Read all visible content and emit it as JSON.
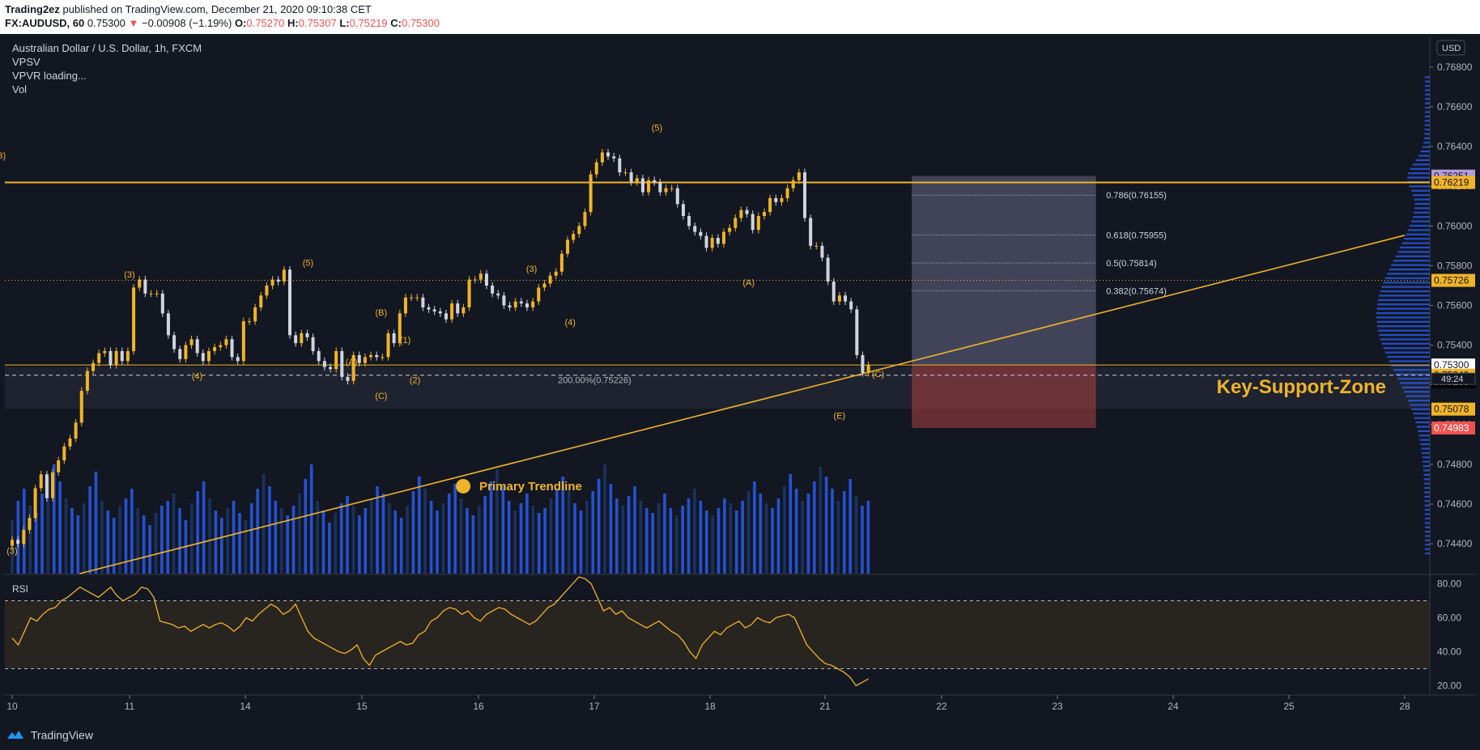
{
  "header": {
    "publisher": "Trading2ez",
    "published_text": "published on TradingView.com, December 21, 2020 09:10:38 CET",
    "symbol": "FX:AUDUSD, 60",
    "last": "0.75300",
    "arrow": "▼",
    "change": "−0.00908 (−1.19%)",
    "o_label": "O:",
    "o": "0.75270",
    "h_label": "H:",
    "h": "0.75307",
    "l_label": "L:",
    "l": "0.75219",
    "c_label": "C:",
    "c": "0.75300"
  },
  "legend": {
    "title": "Australian Dollar / U.S. Dollar, 1h, FXCM",
    "vpsv": "VPSV",
    "vpvr": "VPVR loading...",
    "vol": "Vol",
    "rsi": "RSI"
  },
  "currency": "USD",
  "colors": {
    "background": "#131722",
    "accent": "#f0b429",
    "up": "#f0b429",
    "down": "#d1d4dc",
    "volume": "#2962ff",
    "volume_dark": "#1e3a6e",
    "resistance": "#f0b429",
    "fib_zone": "#7a7d9c",
    "stop_zone": "#8b3a3a",
    "rsi_band": "#3a2f1f"
  },
  "annotations": {
    "key_support_zone": "Key-Support-Zone",
    "primary_trendline": "Primary Trendline",
    "fib_200": "200.00%(0.75226)",
    "fib_786": "0.786(0.76155)",
    "fib_618": "0.618(0.75955)",
    "fib_500": "0.5(0.75814)",
    "fib_382": "0.382(0.75674)",
    "countdown": "49:24"
  },
  "wave_labels": [
    {
      "text": "(3)",
      "date": "2020-12-11 00:00",
      "price": 0.7574
    },
    {
      "text": "(4)",
      "date": "2020-12-11 14:00",
      "price": 0.7523
    },
    {
      "text": "(5)",
      "date": "2020-12-14 13:00",
      "price": 0.758
    },
    {
      "text": "(A)",
      "date": "2020-12-14 22:00",
      "price": 0.753
    },
    {
      "text": "(B)",
      "date": "2020-12-15 04:00",
      "price": 0.7555
    },
    {
      "text": "(C)",
      "date": "2020-12-15 04:00",
      "price": 0.7513
    },
    {
      "text": "(1)",
      "date": "2020-12-15 09:00",
      "price": 0.7541
    },
    {
      "text": "(2)",
      "date": "2020-12-15 11:00",
      "price": 0.7521
    },
    {
      "text": "(3)",
      "date": "2020-12-16 11:00",
      "price": 0.7577
    },
    {
      "text": "(4)",
      "date": "2020-12-16 19:00",
      "price": 0.755
    },
    {
      "text": "(5)",
      "date": "2020-12-17 13:00",
      "price": 0.7648
    },
    {
      "text": "(A)",
      "date": "2020-12-18 08:00",
      "price": 0.757
    },
    {
      "text": "(B)",
      "date": "2020-12-20 21:00",
      "price": 0.7634
    },
    {
      "text": "(C)",
      "date": "2020-12-21 11:00",
      "price": 0.7524
    },
    {
      "text": "(E)",
      "date": "2020-12-21 03:00",
      "price": 0.7503
    },
    {
      "text": "(3)",
      "date": "2020-12-10 00:00",
      "price": 0.7435
    }
  ],
  "price_tags": [
    {
      "text": "0.76251",
      "bg": "#b39ddb",
      "fg": "#131722"
    },
    {
      "text": "0.76219",
      "bg": "#f0b429",
      "fg": "#131722"
    },
    {
      "text": "0.75726",
      "bg": "#f0b429",
      "fg": "#131722"
    },
    {
      "text": "0.75300",
      "bg": "#ffffff",
      "fg": "#131722"
    },
    {
      "text": "0.75289",
      "bg": "#000000",
      "fg": "#ffffff"
    },
    {
      "text": "0.75249",
      "bg": "#f0b429",
      "fg": "#131722"
    },
    {
      "text": "0.75078",
      "bg": "#f0b429",
      "fg": "#131722"
    },
    {
      "text": "0.74983",
      "bg": "#ef5350",
      "fg": "#ffffff"
    }
  ],
  "chart_data": [
    {
      "type": "candlestick",
      "title": "Australian Dollar / U.S. Dollar, 1h, FXCM",
      "x_ticks": [
        "10",
        "11",
        "14",
        "15",
        "16",
        "17",
        "18",
        "21",
        "22",
        "23",
        "24",
        "25",
        "28"
      ],
      "y_ticks": [
        "0.76800",
        "0.76600",
        "0.76400",
        "0.76200",
        "0.76000",
        "0.75800",
        "0.75600",
        "0.75400",
        "0.75200",
        "0.75000",
        "0.74800",
        "0.74600",
        "0.74400"
      ],
      "ylim": [
        0.7425,
        0.7695
      ],
      "resistance": 0.76219,
      "support_line": 0.75249,
      "key_support_zone": [
        0.7508,
        0.7529
      ],
      "dotted_level": 0.75726,
      "fib_levels": [
        {
          "label": "0.786",
          "price": 0.76155
        },
        {
          "label": "0.618",
          "price": 0.75955
        },
        {
          "label": "0.5",
          "price": 0.75814
        },
        {
          "label": "0.382",
          "price": 0.75674
        }
      ],
      "fib_box": [
        0.76251,
        0.753
      ],
      "stop_box": [
        0.753,
        0.74983
      ],
      "trendline": [
        {
          "date": "2020-12-10 14:00",
          "price": 0.7425
        },
        {
          "date": "2020-12-28 00:00",
          "price": 0.75953
        }
      ],
      "closes": [
        0.7442,
        0.744,
        0.7447,
        0.7453,
        0.7468,
        0.7475,
        0.7463,
        0.7476,
        0.7482,
        0.7489,
        0.7493,
        0.7501,
        0.7517,
        0.7527,
        0.7531,
        0.7536,
        0.7537,
        0.753,
        0.7537,
        0.7532,
        0.7537,
        0.7569,
        0.7573,
        0.7566,
        0.7566,
        0.7566,
        0.7556,
        0.7545,
        0.7538,
        0.7533,
        0.754,
        0.7543,
        0.7536,
        0.7532,
        0.7537,
        0.7539,
        0.754,
        0.7543,
        0.7534,
        0.7532,
        0.7552,
        0.7552,
        0.7559,
        0.7565,
        0.757,
        0.7573,
        0.7572,
        0.7578,
        0.7545,
        0.7541,
        0.7546,
        0.7544,
        0.7537,
        0.7532,
        0.7529,
        0.7528,
        0.7537,
        0.7524,
        0.7522,
        0.7535,
        0.7531,
        0.7534,
        0.7535,
        0.7534,
        0.7534,
        0.7546,
        0.7541,
        0.7556,
        0.7564,
        0.7564,
        0.7564,
        0.7559,
        0.7558,
        0.7557,
        0.7556,
        0.7553,
        0.7561,
        0.7556,
        0.7559,
        0.7573,
        0.7573,
        0.7576,
        0.757,
        0.7566,
        0.7565,
        0.756,
        0.7559,
        0.7562,
        0.7561,
        0.7559,
        0.7562,
        0.7569,
        0.7571,
        0.7575,
        0.7577,
        0.7586,
        0.7593,
        0.7596,
        0.76,
        0.7607,
        0.7626,
        0.7632,
        0.7637,
        0.7635,
        0.7634,
        0.7627,
        0.7627,
        0.7622,
        0.7624,
        0.7617,
        0.7623,
        0.7622,
        0.7617,
        0.7619,
        0.7619,
        0.7611,
        0.7605,
        0.76,
        0.7597,
        0.7595,
        0.7589,
        0.7594,
        0.7591,
        0.7597,
        0.7599,
        0.7604,
        0.7608,
        0.7606,
        0.7598,
        0.7605,
        0.7607,
        0.7614,
        0.7612,
        0.7614,
        0.7619,
        0.7623,
        0.7627,
        0.7604,
        0.759,
        0.759,
        0.7584,
        0.7572,
        0.7562,
        0.7565,
        0.7562,
        0.7558,
        0.7535,
        0.7526,
        0.753
      ]
    },
    {
      "type": "bar",
      "name": "Vol",
      "values": [
        22,
        30,
        35,
        28,
        25,
        33,
        40,
        45,
        38,
        31,
        27,
        24,
        29,
        36,
        42,
        30,
        26,
        23,
        28,
        31,
        35,
        27,
        24,
        20,
        25,
        28,
        30,
        33,
        27,
        22,
        29,
        34,
        38,
        31,
        26,
        23,
        27,
        30,
        25,
        22,
        29,
        35,
        41,
        36,
        30,
        27,
        24,
        28,
        33,
        39,
        45,
        30,
        26,
        21,
        25,
        29,
        32,
        28,
        24,
        27,
        31,
        36,
        33,
        29,
        26,
        23,
        28,
        34,
        40,
        35,
        30,
        26,
        29,
        33,
        37,
        31,
        27,
        24,
        28,
        32,
        38,
        43,
        36,
        30,
        26,
        29,
        33,
        28,
        25,
        27,
        31,
        35,
        40,
        34,
        29,
        26,
        30,
        34,
        39,
        45,
        37,
        31,
        28,
        32,
        36,
        30,
        27,
        25,
        29,
        33,
        27,
        24,
        28,
        31,
        35,
        30,
        26,
        24,
        27,
        31,
        29,
        26,
        30,
        34,
        38,
        33,
        29,
        27,
        31,
        36,
        41,
        35,
        30,
        33,
        38,
        44,
        40,
        35,
        30,
        34,
        39,
        32,
        28,
        30
      ]
    },
    {
      "type": "line",
      "name": "RSI",
      "y_ticks": [
        "80.00",
        "60.00",
        "40.00",
        "20.00"
      ],
      "ylim": [
        15,
        85
      ],
      "bands": [
        30,
        70
      ],
      "values": [
        48,
        44,
        52,
        60,
        58,
        62,
        65,
        66,
        70,
        72,
        75,
        78,
        76,
        74,
        72,
        75,
        78,
        73,
        70,
        72,
        74,
        78,
        77,
        72,
        58,
        57,
        56,
        54,
        55,
        52,
        54,
        56,
        54,
        56,
        57,
        55,
        52,
        55,
        60,
        58,
        62,
        65,
        68,
        66,
        62,
        64,
        68,
        60,
        52,
        48,
        46,
        44,
        42,
        40,
        39,
        41,
        44,
        36,
        32,
        38,
        40,
        42,
        44,
        46,
        44,
        45,
        50,
        52,
        58,
        60,
        64,
        66,
        65,
        62,
        64,
        60,
        58,
        62,
        64,
        66,
        65,
        62,
        60,
        58,
        56,
        58,
        62,
        66,
        68,
        72,
        76,
        80,
        84,
        83,
        80,
        72,
        64,
        66,
        62,
        64,
        60,
        58,
        56,
        54,
        56,
        58,
        55,
        52,
        50,
        46,
        40,
        36,
        44,
        48,
        52,
        50,
        54,
        56,
        58,
        54,
        56,
        60,
        58,
        57,
        60,
        61,
        62,
        60,
        52,
        44,
        40,
        36,
        33,
        32,
        30,
        28,
        25,
        20,
        22,
        24
      ]
    }
  ]
}
